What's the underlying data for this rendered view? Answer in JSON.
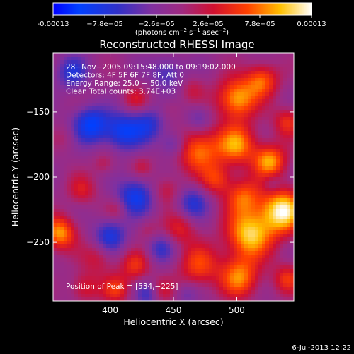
{
  "colorbar": {
    "ticks": [
      {
        "label": "-0.00013",
        "value": -0.00013
      },
      {
        "label": "−7.8e−05",
        "value": -7.8e-05
      },
      {
        "label": "−2.6e−05",
        "value": -2.6e-05
      },
      {
        "label": "2.6e−05",
        "value": 2.6e-05
      },
      {
        "label": "7.8e−05",
        "value": 7.8e-05
      },
      {
        "label": "0.00013",
        "value": 0.00013
      }
    ],
    "unit_parts": [
      "(photons cm",
      "−2",
      " s",
      "−1",
      " asec",
      "−2",
      ")"
    ],
    "range": [
      -0.00013,
      0.00013
    ],
    "colors": [
      "#0000ff",
      "#ff0000",
      "#ffff00",
      "#ffffff"
    ]
  },
  "chart_data": {
    "type": "heatmap",
    "title": "Reconstructed RHESSI Image",
    "xlabel": "Heliocentric X (arcsec)",
    "ylabel": "Heliocentric Y (arcsec)",
    "xlim": [
      355,
      545
    ],
    "ylim": [
      -295,
      -105
    ],
    "x_ticks": [
      {
        "label": "400",
        "value": 400
      },
      {
        "label": "450",
        "value": 450
      },
      {
        "label": "500",
        "value": 500
      }
    ],
    "y_ticks": [
      {
        "label": "−150",
        "value": -150
      },
      {
        "label": "−200",
        "value": -200
      },
      {
        "label": "−250",
        "value": -250
      }
    ],
    "info_lines": [
      "28−Nov−2005 09:15:48.000 to 09:19:02.000",
      "Detectors: 4F 5F 6F 7F 8F, Att 0",
      "Energy Range: 25.0 − 50.0 keV",
      "Clean     Total counts: 3.74E+03"
    ],
    "peak_label": "Position of Peak = [534,−225]",
    "peak": [
      534,
      -225
    ],
    "grid": false,
    "blobs": [
      {
        "x": 390,
        "y": -140,
        "v": 5e-06,
        "s": 9
      },
      {
        "x": 420,
        "y": -140,
        "v": 4e-05,
        "s": 7
      },
      {
        "x": 465,
        "y": -133,
        "v": 3e-05,
        "s": 7
      },
      {
        "x": 448,
        "y": -148,
        "v": 2e-05,
        "s": 6
      },
      {
        "x": 500,
        "y": -140,
        "v": 0.000105,
        "s": 11
      },
      {
        "x": 520,
        "y": -126,
        "v": 8e-05,
        "s": 9
      },
      {
        "x": 500,
        "y": -175,
        "v": 9.5e-05,
        "s": 11
      },
      {
        "x": 470,
        "y": -180,
        "v": 9e-05,
        "s": 12
      },
      {
        "x": 526,
        "y": -188,
        "v": 0.0001,
        "s": 9
      },
      {
        "x": 540,
        "y": -158,
        "v": 6e-05,
        "s": 8
      },
      {
        "x": 505,
        "y": -215,
        "v": 7.5e-05,
        "s": 10
      },
      {
        "x": 484,
        "y": -202,
        "v": 6e-05,
        "s": 8
      },
      {
        "x": 536,
        "y": -226,
        "v": 0.00013,
        "s": 12
      },
      {
        "x": 510,
        "y": -244,
        "v": 0.000115,
        "s": 13
      },
      {
        "x": 470,
        "y": -268,
        "v": 7e-05,
        "s": 11
      },
      {
        "x": 502,
        "y": -277,
        "v": 9e-05,
        "s": 11
      },
      {
        "x": 540,
        "y": -278,
        "v": 6e-05,
        "s": 8
      },
      {
        "x": 455,
        "y": -240,
        "v": 5e-05,
        "s": 9
      },
      {
        "x": 360,
        "y": -243,
        "v": 0.0001,
        "s": 9
      },
      {
        "x": 378,
        "y": -210,
        "v": 4.5e-05,
        "s": 8
      },
      {
        "x": 395,
        "y": -190,
        "v": 3e-05,
        "s": 6
      },
      {
        "x": 390,
        "y": -262,
        "v": 4e-05,
        "s": 9
      },
      {
        "x": 380,
        "y": -285,
        "v": 5e-05,
        "s": 8
      },
      {
        "x": 420,
        "y": -268,
        "v": 6e-05,
        "s": 8
      },
      {
        "x": 440,
        "y": -287,
        "v": 4e-05,
        "s": 7
      },
      {
        "x": 405,
        "y": -286,
        "v": 6e-05,
        "s": 8
      },
      {
        "x": 445,
        "y": -210,
        "v": 4e-05,
        "s": 8
      },
      {
        "x": 425,
        "y": -192,
        "v": 3e-05,
        "s": 6
      },
      {
        "x": 405,
        "y": -225,
        "v": 3e-05,
        "s": 6
      },
      {
        "x": 430,
        "y": -240,
        "v": 2.5e-05,
        "s": 6
      },
      {
        "x": 365,
        "y": -170,
        "v": 2e-05,
        "s": 7
      },
      {
        "x": 385,
        "y": -160,
        "v": -9e-05,
        "s": 10
      },
      {
        "x": 410,
        "y": -165,
        "v": -8e-05,
        "s": 10
      },
      {
        "x": 430,
        "y": -160,
        "v": -6e-05,
        "s": 9
      },
      {
        "x": 370,
        "y": -120,
        "v": -6e-05,
        "s": 9
      },
      {
        "x": 445,
        "y": -120,
        "v": -5e-05,
        "s": 9
      },
      {
        "x": 420,
        "y": -215,
        "v": -8e-05,
        "s": 10
      },
      {
        "x": 400,
        "y": -245,
        "v": -7e-05,
        "s": 9
      },
      {
        "x": 440,
        "y": -255,
        "v": -5e-05,
        "s": 8
      },
      {
        "x": 465,
        "y": -220,
        "v": -6e-05,
        "s": 9
      },
      {
        "x": 470,
        "y": -155,
        "v": -4e-05,
        "s": 7
      },
      {
        "x": 450,
        "y": -175,
        "v": -5e-05,
        "s": 7
      },
      {
        "x": 430,
        "y": -290,
        "v": -5e-05,
        "s": 7
      },
      {
        "x": 460,
        "y": -290,
        "v": -3e-05,
        "s": 6
      },
      {
        "x": 528,
        "y": -205,
        "v": -3e-05,
        "s": 5
      }
    ]
  },
  "footer": {
    "timestamp": "6-Jul-2013 12:22"
  }
}
